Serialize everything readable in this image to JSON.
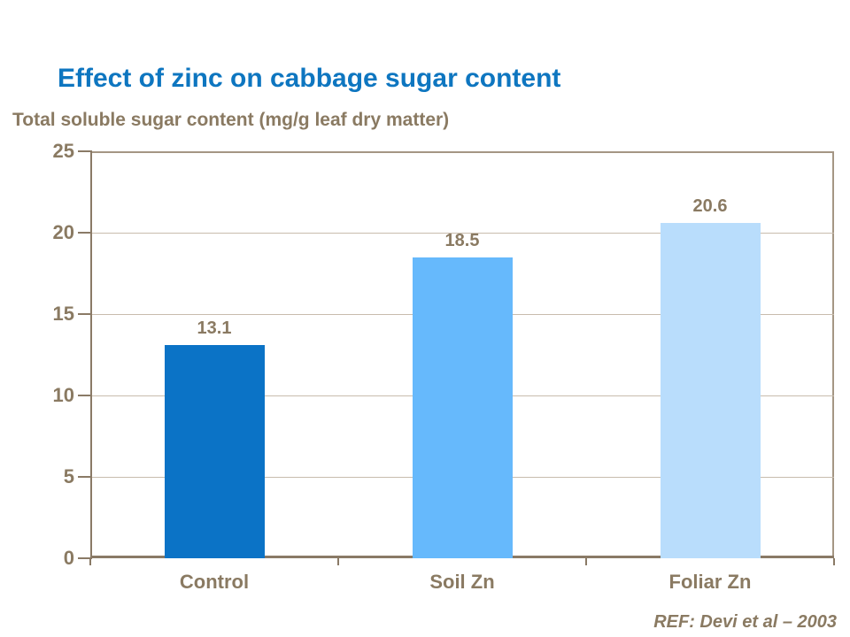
{
  "title": {
    "text": "Effect of zinc on cabbage sugar content"
  },
  "subtitle": {
    "text": "Total soluble sugar content (mg/g leaf dry matter)"
  },
  "reference": {
    "text": "REF: Devi et al – 2003"
  },
  "colors": {
    "title_blue": "#0E76C0",
    "text_brown": "#8A7A62",
    "gridline": "#C8BCAD",
    "plot_border": "#A59684",
    "axis": "#8A7A66",
    "background": "#FFFFFF"
  },
  "chart_data": {
    "type": "bar",
    "title": "Effect of zinc on cabbage sugar content",
    "ylabel": "Total soluble sugar content (mg/g leaf dry matter)",
    "categories": [
      "Control",
      "Soil Zn",
      "Foliar Zn"
    ],
    "values": [
      13.1,
      18.5,
      20.6
    ],
    "data_labels": [
      "13.1",
      "18.5",
      "20.6"
    ],
    "bar_colors": [
      "#0B73C6",
      "#66B9FC",
      "#B9DDFC"
    ],
    "ylim": [
      0,
      25
    ],
    "yticks": [
      0,
      5,
      10,
      15,
      20,
      25
    ],
    "grid": true,
    "legend": "none",
    "annotation": "REF: Devi et al – 2003"
  }
}
